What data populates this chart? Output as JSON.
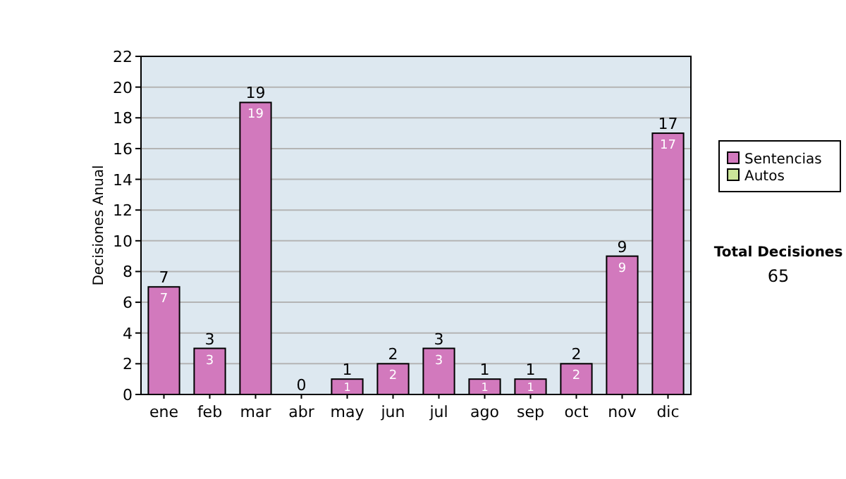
{
  "chart_data": {
    "type": "bar",
    "stacked": true,
    "ylabel": "Decisiones Anual",
    "categories": [
      "ene",
      "feb",
      "mar",
      "abr",
      "may",
      "jun",
      "jul",
      "ago",
      "sep",
      "oct",
      "nov",
      "dic"
    ],
    "series": [
      {
        "name": "Sentencias",
        "color": "#d279bd",
        "values": [
          7,
          3,
          19,
          0,
          1,
          2,
          3,
          1,
          1,
          2,
          9,
          17
        ],
        "value_labels": [
          "7",
          "3",
          "19",
          null,
          "1",
          "2",
          "3",
          "1",
          "1",
          "2",
          "9",
          "17"
        ]
      },
      {
        "name": "Autos",
        "color": "#cce699",
        "values": [
          0,
          0,
          0,
          0,
          0,
          0,
          0,
          0,
          0,
          0,
          0,
          0
        ]
      }
    ],
    "totals": [
      "7",
      "3",
      "19",
      "0",
      "1",
      "2",
      "3",
      "1",
      "1",
      "2",
      "9",
      "17"
    ],
    "ylim": [
      0,
      22
    ],
    "yticks": [
      0,
      2,
      4,
      6,
      8,
      10,
      12,
      14,
      16,
      18,
      20,
      22
    ],
    "grid": "y",
    "legend": "right",
    "annotations": [
      "Total Decisiones",
      "65"
    ]
  }
}
